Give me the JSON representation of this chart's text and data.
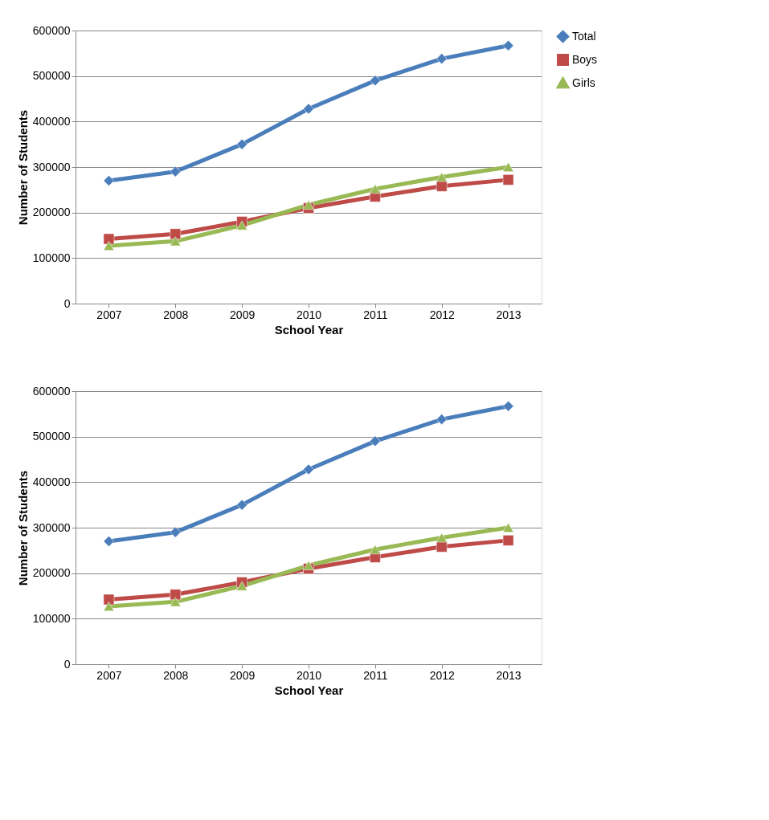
{
  "chart_data": [
    {
      "type": "line",
      "xlabel": "School Year",
      "ylabel": "Number of Students",
      "categories": [
        "2007",
        "2008",
        "2009",
        "2010",
        "2011",
        "2012",
        "2013"
      ],
      "ylim": [
        0,
        600000
      ],
      "yticks": [
        0,
        100000,
        200000,
        300000,
        400000,
        500000,
        600000
      ],
      "grid": "y",
      "legend": "right",
      "series": [
        {
          "name": "Total",
          "color": "#4a7ebb",
          "marker": "diamond",
          "values": [
            270000,
            290000,
            350000,
            428000,
            490000,
            538000,
            567000
          ]
        },
        {
          "name": "Boys",
          "color": "#be4b48",
          "marker": "square",
          "values": [
            142000,
            153000,
            180000,
            210000,
            235000,
            258000,
            272000
          ]
        },
        {
          "name": "Girls",
          "color": "#98b954",
          "marker": "triangle",
          "values": [
            127000,
            137000,
            172000,
            217000,
            252000,
            278000,
            300000
          ]
        }
      ]
    },
    {
      "type": "line",
      "xlabel": "School Year",
      "ylabel": "Number of Students",
      "categories": [
        "2007",
        "2008",
        "2009",
        "2010",
        "2011",
        "2012",
        "2013"
      ],
      "ylim": [
        0,
        600000
      ],
      "yticks": [
        0,
        100000,
        200000,
        300000,
        400000,
        500000,
        600000
      ],
      "grid": "y",
      "legend": "right",
      "series": [
        {
          "name": "Total",
          "color": "#4a7ebb",
          "marker": "diamond",
          "values": [
            270000,
            290000,
            350000,
            428000,
            490000,
            538000,
            567000
          ]
        },
        {
          "name": "Boys",
          "color": "#be4b48",
          "marker": "square",
          "values": [
            142000,
            153000,
            180000,
            210000,
            235000,
            258000,
            272000
          ]
        },
        {
          "name": "Girls",
          "color": "#98b954",
          "marker": "triangle",
          "values": [
            127000,
            137000,
            172000,
            217000,
            252000,
            278000,
            300000
          ]
        }
      ]
    }
  ]
}
